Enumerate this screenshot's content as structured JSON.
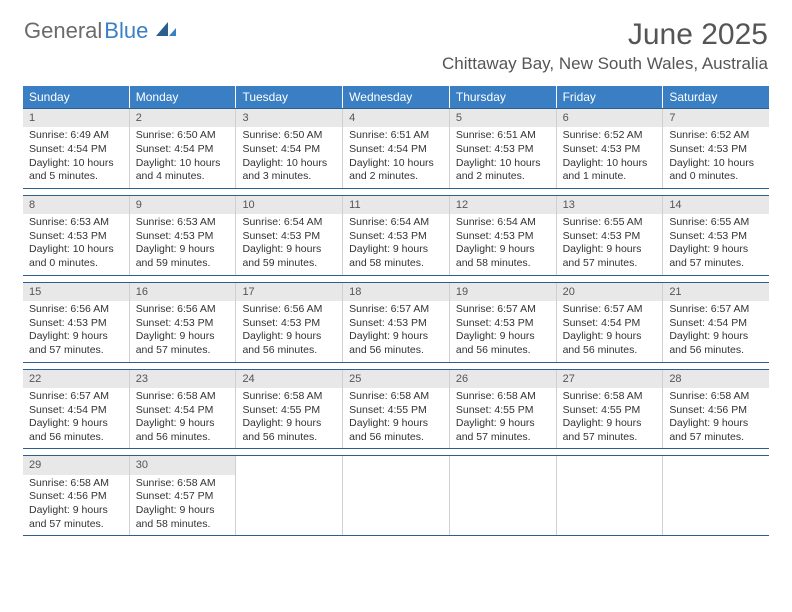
{
  "logo": {
    "text1": "General",
    "text2": "Blue"
  },
  "title": "June 2025",
  "location": "Chittaway Bay, New South Wales, Australia",
  "colors": {
    "header_bg": "#3a7fc4",
    "header_text": "#ffffff",
    "row_border": "#2c5f8d",
    "daynum_bg": "#e8e8e8",
    "cell_border": "#d0d0d0"
  },
  "day_headers": [
    "Sunday",
    "Monday",
    "Tuesday",
    "Wednesday",
    "Thursday",
    "Friday",
    "Saturday"
  ],
  "weeks": [
    [
      {
        "n": "1",
        "sunrise": "Sunrise: 6:49 AM",
        "sunset": "Sunset: 4:54 PM",
        "daylight1": "Daylight: 10 hours",
        "daylight2": "and 5 minutes."
      },
      {
        "n": "2",
        "sunrise": "Sunrise: 6:50 AM",
        "sunset": "Sunset: 4:54 PM",
        "daylight1": "Daylight: 10 hours",
        "daylight2": "and 4 minutes."
      },
      {
        "n": "3",
        "sunrise": "Sunrise: 6:50 AM",
        "sunset": "Sunset: 4:54 PM",
        "daylight1": "Daylight: 10 hours",
        "daylight2": "and 3 minutes."
      },
      {
        "n": "4",
        "sunrise": "Sunrise: 6:51 AM",
        "sunset": "Sunset: 4:54 PM",
        "daylight1": "Daylight: 10 hours",
        "daylight2": "and 2 minutes."
      },
      {
        "n": "5",
        "sunrise": "Sunrise: 6:51 AM",
        "sunset": "Sunset: 4:53 PM",
        "daylight1": "Daylight: 10 hours",
        "daylight2": "and 2 minutes."
      },
      {
        "n": "6",
        "sunrise": "Sunrise: 6:52 AM",
        "sunset": "Sunset: 4:53 PM",
        "daylight1": "Daylight: 10 hours",
        "daylight2": "and 1 minute."
      },
      {
        "n": "7",
        "sunrise": "Sunrise: 6:52 AM",
        "sunset": "Sunset: 4:53 PM",
        "daylight1": "Daylight: 10 hours",
        "daylight2": "and 0 minutes."
      }
    ],
    [
      {
        "n": "8",
        "sunrise": "Sunrise: 6:53 AM",
        "sunset": "Sunset: 4:53 PM",
        "daylight1": "Daylight: 10 hours",
        "daylight2": "and 0 minutes."
      },
      {
        "n": "9",
        "sunrise": "Sunrise: 6:53 AM",
        "sunset": "Sunset: 4:53 PM",
        "daylight1": "Daylight: 9 hours",
        "daylight2": "and 59 minutes."
      },
      {
        "n": "10",
        "sunrise": "Sunrise: 6:54 AM",
        "sunset": "Sunset: 4:53 PM",
        "daylight1": "Daylight: 9 hours",
        "daylight2": "and 59 minutes."
      },
      {
        "n": "11",
        "sunrise": "Sunrise: 6:54 AM",
        "sunset": "Sunset: 4:53 PM",
        "daylight1": "Daylight: 9 hours",
        "daylight2": "and 58 minutes."
      },
      {
        "n": "12",
        "sunrise": "Sunrise: 6:54 AM",
        "sunset": "Sunset: 4:53 PM",
        "daylight1": "Daylight: 9 hours",
        "daylight2": "and 58 minutes."
      },
      {
        "n": "13",
        "sunrise": "Sunrise: 6:55 AM",
        "sunset": "Sunset: 4:53 PM",
        "daylight1": "Daylight: 9 hours",
        "daylight2": "and 57 minutes."
      },
      {
        "n": "14",
        "sunrise": "Sunrise: 6:55 AM",
        "sunset": "Sunset: 4:53 PM",
        "daylight1": "Daylight: 9 hours",
        "daylight2": "and 57 minutes."
      }
    ],
    [
      {
        "n": "15",
        "sunrise": "Sunrise: 6:56 AM",
        "sunset": "Sunset: 4:53 PM",
        "daylight1": "Daylight: 9 hours",
        "daylight2": "and 57 minutes."
      },
      {
        "n": "16",
        "sunrise": "Sunrise: 6:56 AM",
        "sunset": "Sunset: 4:53 PM",
        "daylight1": "Daylight: 9 hours",
        "daylight2": "and 57 minutes."
      },
      {
        "n": "17",
        "sunrise": "Sunrise: 6:56 AM",
        "sunset": "Sunset: 4:53 PM",
        "daylight1": "Daylight: 9 hours",
        "daylight2": "and 56 minutes."
      },
      {
        "n": "18",
        "sunrise": "Sunrise: 6:57 AM",
        "sunset": "Sunset: 4:53 PM",
        "daylight1": "Daylight: 9 hours",
        "daylight2": "and 56 minutes."
      },
      {
        "n": "19",
        "sunrise": "Sunrise: 6:57 AM",
        "sunset": "Sunset: 4:53 PM",
        "daylight1": "Daylight: 9 hours",
        "daylight2": "and 56 minutes."
      },
      {
        "n": "20",
        "sunrise": "Sunrise: 6:57 AM",
        "sunset": "Sunset: 4:54 PM",
        "daylight1": "Daylight: 9 hours",
        "daylight2": "and 56 minutes."
      },
      {
        "n": "21",
        "sunrise": "Sunrise: 6:57 AM",
        "sunset": "Sunset: 4:54 PM",
        "daylight1": "Daylight: 9 hours",
        "daylight2": "and 56 minutes."
      }
    ],
    [
      {
        "n": "22",
        "sunrise": "Sunrise: 6:57 AM",
        "sunset": "Sunset: 4:54 PM",
        "daylight1": "Daylight: 9 hours",
        "daylight2": "and 56 minutes."
      },
      {
        "n": "23",
        "sunrise": "Sunrise: 6:58 AM",
        "sunset": "Sunset: 4:54 PM",
        "daylight1": "Daylight: 9 hours",
        "daylight2": "and 56 minutes."
      },
      {
        "n": "24",
        "sunrise": "Sunrise: 6:58 AM",
        "sunset": "Sunset: 4:55 PM",
        "daylight1": "Daylight: 9 hours",
        "daylight2": "and 56 minutes."
      },
      {
        "n": "25",
        "sunrise": "Sunrise: 6:58 AM",
        "sunset": "Sunset: 4:55 PM",
        "daylight1": "Daylight: 9 hours",
        "daylight2": "and 56 minutes."
      },
      {
        "n": "26",
        "sunrise": "Sunrise: 6:58 AM",
        "sunset": "Sunset: 4:55 PM",
        "daylight1": "Daylight: 9 hours",
        "daylight2": "and 57 minutes."
      },
      {
        "n": "27",
        "sunrise": "Sunrise: 6:58 AM",
        "sunset": "Sunset: 4:55 PM",
        "daylight1": "Daylight: 9 hours",
        "daylight2": "and 57 minutes."
      },
      {
        "n": "28",
        "sunrise": "Sunrise: 6:58 AM",
        "sunset": "Sunset: 4:56 PM",
        "daylight1": "Daylight: 9 hours",
        "daylight2": "and 57 minutes."
      }
    ],
    [
      {
        "n": "29",
        "sunrise": "Sunrise: 6:58 AM",
        "sunset": "Sunset: 4:56 PM",
        "daylight1": "Daylight: 9 hours",
        "daylight2": "and 57 minutes."
      },
      {
        "n": "30",
        "sunrise": "Sunrise: 6:58 AM",
        "sunset": "Sunset: 4:57 PM",
        "daylight1": "Daylight: 9 hours",
        "daylight2": "and 58 minutes."
      },
      null,
      null,
      null,
      null,
      null
    ]
  ]
}
